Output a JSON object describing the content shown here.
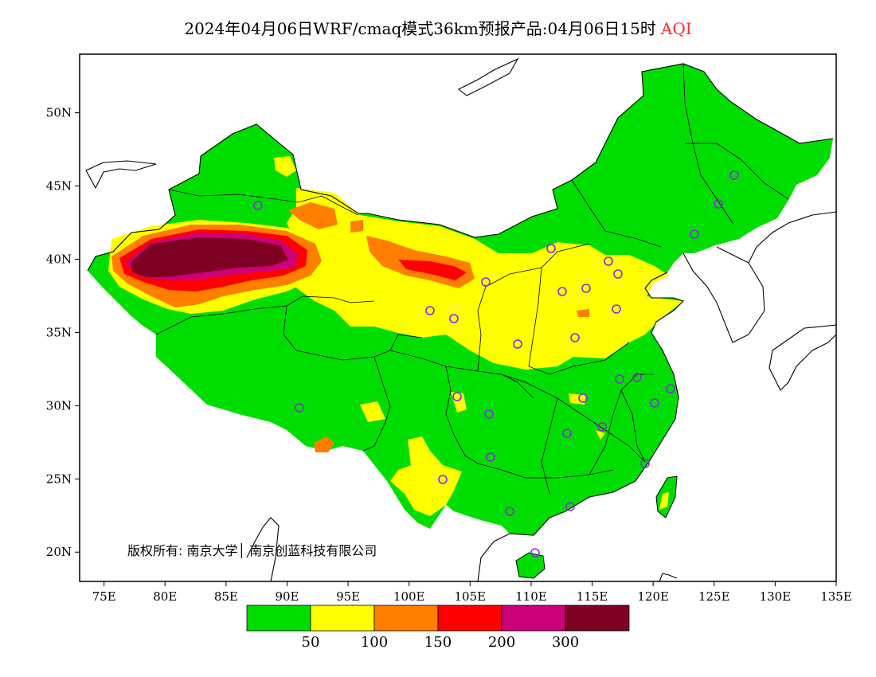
{
  "title": {
    "text": "2024年04月06日WRF/cmaq模式36km预报产品:04月06日15时",
    "variable": "AQI",
    "variable_color": "#ff2a2a"
  },
  "map": {
    "lon_range": [
      73,
      135
    ],
    "lat_range": [
      18,
      54
    ],
    "x_ticks": [
      "75E",
      "80E",
      "85E",
      "90E",
      "95E",
      "100E",
      "105E",
      "110E",
      "115E",
      "120E",
      "125E",
      "130E",
      "135E"
    ],
    "y_ticks": [
      "20N",
      "25N",
      "30N",
      "35N",
      "40N",
      "45N",
      "50N"
    ],
    "copyright": "版权所有: 南京大学│ 南京创蓝科技有限公司",
    "station_marker_color": "#8a2be2"
  },
  "legend": {
    "colors": [
      "#00dd00",
      "#ffff00",
      "#ff7e00",
      "#ff0000",
      "#cc0077",
      "#7e0023"
    ],
    "labels": [
      "50",
      "100",
      "150",
      "200",
      "300"
    ]
  }
}
